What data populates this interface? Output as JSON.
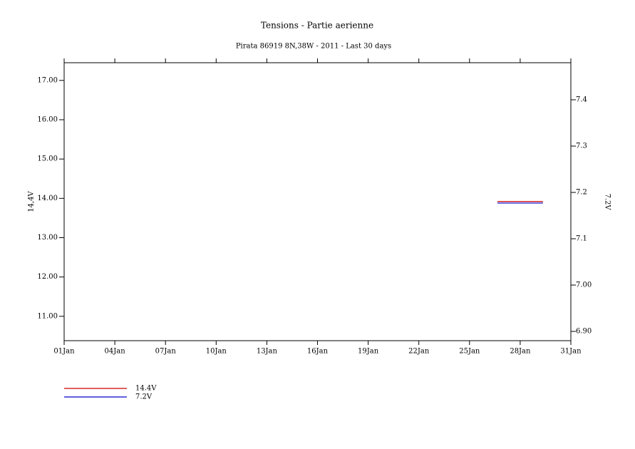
{
  "chart_data": {
    "type": "line",
    "title": "Tensions - Partie aerienne",
    "subtitle": "Pirata 86919 8N,38W - 2011 - Last 30 days",
    "y_label": "14,4V",
    "y2_label": "7.2V",
    "x": [
      26.65,
      28,
      29.35
    ],
    "xlim": [
      1,
      31
    ],
    "xticks": [
      {
        "value": 1,
        "label": "01Jan"
      },
      {
        "value": 4,
        "label": "04Jan"
      },
      {
        "value": 7,
        "label": "07Jan"
      },
      {
        "value": 10,
        "label": "10Jan"
      },
      {
        "value": 13,
        "label": "13Jan"
      },
      {
        "value": 16,
        "label": "16Jan"
      },
      {
        "value": 19,
        "label": "19Jan"
      },
      {
        "value": 22,
        "label": "22Jan"
      },
      {
        "value": 25,
        "label": "25Jan"
      },
      {
        "value": 28,
        "label": "28Jan"
      },
      {
        "value": 31,
        "label": "31Jan"
      }
    ],
    "ylim": [
      10.38,
      17.45
    ],
    "yticks": [
      {
        "value": 11,
        "label": "11.00"
      },
      {
        "value": 12,
        "label": "12.00"
      },
      {
        "value": 13,
        "label": "13.00"
      },
      {
        "value": 14,
        "label": "14.00"
      },
      {
        "value": 15,
        "label": "15.00"
      },
      {
        "value": 16,
        "label": "16.00"
      },
      {
        "value": 17,
        "label": "17.00"
      }
    ],
    "y2lim": [
      6.88,
      7.48
    ],
    "y2ticks": [
      {
        "value": 6.9,
        "label": "6.90"
      },
      {
        "value": 7.0,
        "label": "7.00"
      },
      7.1,
      7.2,
      7.3,
      7.4
    ],
    "series": [
      {
        "name": "14.4V",
        "color": "#cc0000",
        "values": [
          13.92,
          13.92,
          13.92
        ]
      },
      {
        "name": "7.2V",
        "color": "#0000cc",
        "axis": "y2",
        "values": [
          7.177,
          7.177,
          7.177
        ]
      }
    ]
  }
}
